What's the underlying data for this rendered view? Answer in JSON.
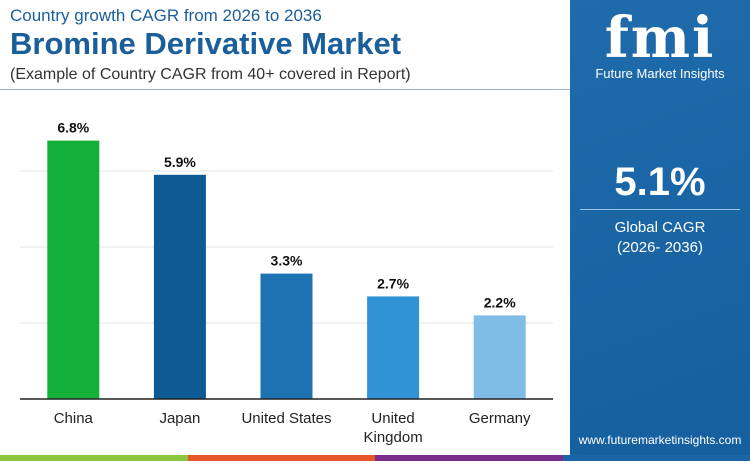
{
  "header": {
    "subtitle": "Country growth CAGR from 2026 to 2036",
    "title": "Bromine Derivative Market",
    "note": "(Example of Country CAGR from 40+ covered in Report)"
  },
  "brand": {
    "logo_text": "fmi",
    "name": "Future Market Insights",
    "url": "www.futuremarketinsights.com"
  },
  "summary": {
    "value": "5.1%",
    "label": "Global CAGR",
    "period": "(2026- 2036)"
  },
  "colors": {
    "panel": "#1a65a6",
    "title": "#1a5e9a",
    "bottom_bar": [
      "#8cc63f",
      "#e8572a",
      "#7b2d8e",
      "#1a65a6"
    ]
  },
  "chart_data": {
    "type": "bar",
    "title": "",
    "xlabel": "",
    "ylabel": "",
    "ylim": [
      0,
      8
    ],
    "grid": true,
    "categories": [
      "China",
      "Japan",
      "United States",
      "United Kingdom",
      "Germany"
    ],
    "category_lines": [
      [
        "China"
      ],
      [
        "Japan"
      ],
      [
        "United States"
      ],
      [
        "United",
        "Kingdom"
      ],
      [
        "Germany"
      ]
    ],
    "values": [
      6.8,
      5.9,
      3.3,
      2.7,
      2.2
    ],
    "labels": [
      "6.8%",
      "5.9%",
      "3.3%",
      "2.7%",
      "2.2%"
    ],
    "bar_colors": [
      "#13b03a",
      "#0d5a94",
      "#1e73b2",
      "#2f93d6",
      "#7fbde6"
    ]
  }
}
